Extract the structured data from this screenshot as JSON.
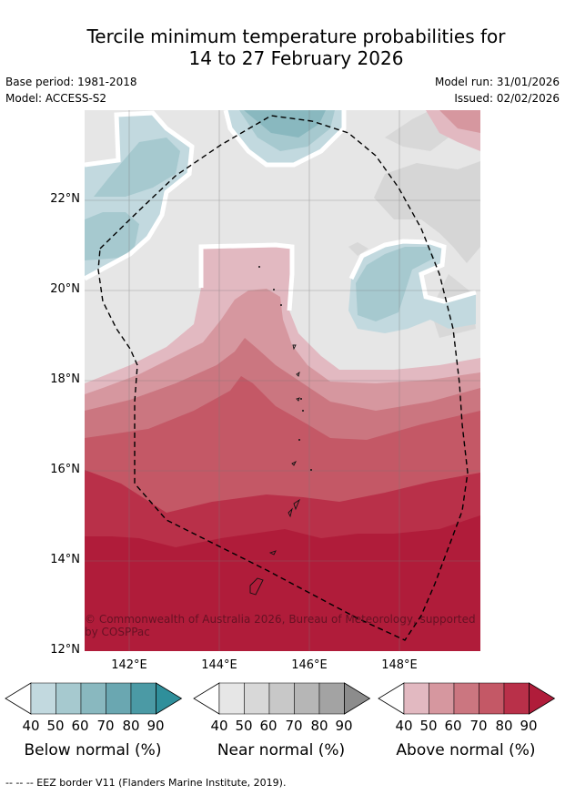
{
  "title_line1": "Tercile minimum temperature probabilities for",
  "title_line2": "14 to 27 February 2026",
  "meta": {
    "base_period": "Base period: 1981-2018",
    "model": "Model: ACCESS-S2",
    "model_run": "Model run: 31/01/2026",
    "issued": "Issued: 02/02/2026"
  },
  "map": {
    "y_ticks": [
      "22°N",
      "20°N",
      "18°N",
      "16°N",
      "14°N",
      "12°N"
    ],
    "x_ticks": [
      "142°E",
      "144°E",
      "146°E",
      "148°E"
    ],
    "copyright": "© Commonwealth of Australia 2026, Bureau of Meteorology, supported by COSPPac"
  },
  "colorbars": [
    {
      "title": "Below normal (%)",
      "ticks": [
        "40",
        "50",
        "60",
        "70",
        "80",
        "90"
      ],
      "colors": [
        "#c2d9df",
        "#a6c9cf",
        "#89b8bf",
        "#6aa7b1",
        "#4b9aa5",
        "#2f8f9b"
      ]
    },
    {
      "title": "Near normal (%)",
      "ticks": [
        "40",
        "50",
        "60",
        "70",
        "80",
        "90"
      ],
      "colors": [
        "#e6e6e6",
        "#d8d8d8",
        "#c8c8c8",
        "#b6b6b6",
        "#a3a3a3",
        "#8c8c8c"
      ]
    },
    {
      "title": "Above normal (%)",
      "ticks": [
        "40",
        "50",
        "60",
        "70",
        "80",
        "90"
      ],
      "colors": [
        "#e2b9c1",
        "#d6979f",
        "#cb7680",
        "#c45866",
        "#b93049",
        "#b01c3a"
      ]
    }
  ],
  "footer": "--  --  -- EEZ border V11 (Flanders Marine Institute, 2019)."
}
